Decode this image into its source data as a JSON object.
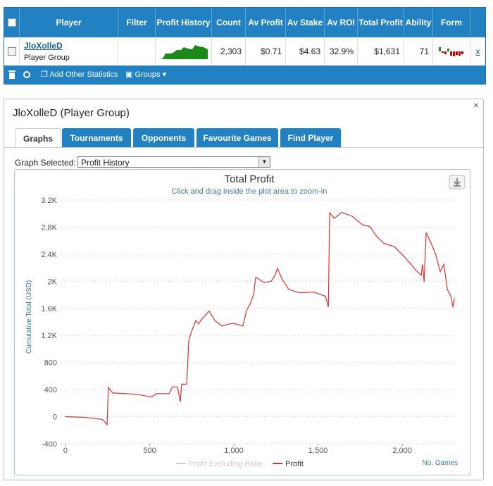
{
  "table": {
    "headers": [
      "Player",
      "Filter",
      "Profit History",
      "Count",
      "Av Profit",
      "Av Stake",
      "Av ROI",
      "Total Profit",
      "Ability",
      "Form"
    ],
    "row": {
      "player": "JloXolleD",
      "group": "Player Group",
      "count": "2,303",
      "av_profit": "$0.71",
      "av_stake": "$4.63",
      "av_roi": "32.9%",
      "total_profit": "$1,631",
      "ability": "71",
      "remove": "x"
    },
    "toolbar": {
      "add": "Add Other Statistics",
      "groups": "Groups"
    }
  },
  "panel": {
    "title": "JloXolleD (Player Group)",
    "close": "×",
    "tabs": [
      "Graphs",
      "Tournaments",
      "Opponents",
      "Favourite Games",
      "Find Player"
    ],
    "graph_label": "Graph Selected:",
    "graph_value": "Profit History"
  },
  "chart_data": {
    "type": "line",
    "title": "Total Profit",
    "subtitle": "Click and drag inside the plot area to zoom-in",
    "y_label": "Cumulative Total (USD)",
    "x_label": "No. Games",
    "xlim": [
      -25,
      2330
    ],
    "ylim": [
      -400,
      3200
    ],
    "xticks": [
      0,
      500,
      {
        "value": 1000,
        "label": "1,000"
      },
      {
        "value": 1500,
        "label": "1,500"
      },
      {
        "value": 2000,
        "label": "2,000"
      }
    ],
    "yticks": [
      {
        "value": -400,
        "label": "-400"
      },
      0,
      400,
      800,
      {
        "value": 1200,
        "label": "1.2K"
      },
      {
        "value": 1600,
        "label": "1.6K"
      },
      {
        "value": 2000,
        "label": "2K"
      },
      {
        "value": 2400,
        "label": "2.4K"
      },
      {
        "value": 2800,
        "label": "2.8K"
      },
      {
        "value": 3200,
        "label": "3.2K"
      }
    ],
    "grid": true,
    "legend": [
      {
        "name": "Profit Excluding Rake",
        "color": "#cccccc"
      },
      {
        "name": "Profit",
        "color": "#d9322e"
      }
    ],
    "series": [
      {
        "name": "Profit",
        "color": "#d9322e",
        "x": [
          0,
          113,
          218,
          238,
          247,
          255,
          280,
          364,
          448,
          510,
          540,
          615,
          636,
          665,
          682,
          690,
          720,
          732,
          749,
          774,
          791,
          803,
          824,
          854,
          887,
          929,
          992,
          1054,
          1075,
          1096,
          1117,
          1130,
          1180,
          1222,
          1243,
          1259,
          1285,
          1326,
          1389,
          1473,
          1544,
          1561,
          1569,
          1598,
          1640,
          1703,
          1766,
          1808,
          1849,
          1891,
          1954,
          2017,
          2079,
          2113,
          2121,
          2130,
          2142,
          2172,
          2197,
          2226,
          2247,
          2268,
          2289,
          2301,
          2310
        ],
        "values": [
          0,
          -10,
          -40,
          -90,
          -120,
          430,
          350,
          340,
          320,
          290,
          340,
          340,
          440,
          440,
          220,
          480,
          480,
          1120,
          1260,
          1420,
          1370,
          1420,
          1480,
          1560,
          1420,
          1340,
          1380,
          1340,
          1570,
          1660,
          1800,
          2060,
          1980,
          2000,
          2080,
          2190,
          2040,
          1880,
          1830,
          1840,
          1780,
          1620,
          3010,
          2930,
          3020,
          2960,
          2830,
          2810,
          2660,
          2560,
          2510,
          2350,
          2170,
          2090,
          2250,
          1990,
          2720,
          2560,
          2410,
          2140,
          2250,
          1880,
          1780,
          1620,
          1750
        ]
      }
    ]
  }
}
